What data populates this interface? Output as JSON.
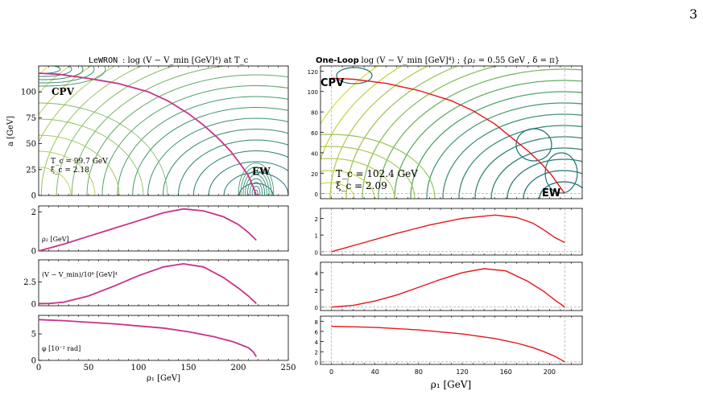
{
  "page_number": "3",
  "left_panel": {
    "title_code": "LeWRON",
    "title_rest": ": log (V − V_min [GeV]⁴) at T_c",
    "y_label": "a [GeV]",
    "x_label": "ρ₁ [GeV]",
    "point_cpv": "CPV",
    "point_ew": "EW",
    "tc_text": "T_c = 99.7 GeV",
    "xi_text": "ξ_c = 2.18"
  },
  "right_panel": {
    "title_code": "One-Loop",
    "title_rest": " :  log (V − V_min [GeV]⁴) ; {ρ₂ = 0.55 GeV ,  δ = π}",
    "x_label": "ρ₁ [GeV]",
    "point_cpv": "CPV",
    "point_ew": "EW",
    "tc_text": "T_c = 102.4 GeV",
    "xi_text": "ξ_c = 2.09"
  },
  "colors": {
    "lewron_path": "#c8338a",
    "oneloop_path": "#e8141b",
    "contour_dark": "#1b6f75",
    "contour_light": "#d9e04a"
  },
  "chart_data": [
    {
      "type": "line",
      "panel": "left-contour",
      "title": "LeWRON: log (V − V_min [GeV]⁴) at T_c",
      "ylabel": "a [GeV]",
      "xlim": [
        0,
        250
      ],
      "ylim": [
        0,
        125
      ],
      "xticks": [
        0,
        50,
        100,
        150,
        200,
        250
      ],
      "yticks": [
        0,
        25,
        50,
        75,
        100
      ],
      "series": [
        {
          "x": [
            0,
            20,
            50,
            80,
            110,
            130,
            150,
            165,
            180,
            192,
            203,
            210,
            215,
            218
          ],
          "y": [
            118,
            117,
            113,
            108,
            100,
            91,
            79,
            68,
            55,
            43,
            29,
            19,
            8,
            0
          ]
        }
      ]
    },
    {
      "type": "line",
      "panel": "left-rho2",
      "ylabel": "ρ₂ [GeV]",
      "xlim": [
        0,
        250
      ],
      "ylim": [
        0,
        2.3
      ],
      "yticks": [
        0,
        2
      ],
      "series": [
        {
          "x": [
            0,
            25,
            50,
            75,
            100,
            125,
            145,
            165,
            185,
            200,
            210,
            215,
            218
          ],
          "y": [
            0,
            0.35,
            0.75,
            1.15,
            1.55,
            1.95,
            2.15,
            2.05,
            1.75,
            1.35,
            0.95,
            0.7,
            0.55
          ]
        }
      ]
    },
    {
      "type": "line",
      "panel": "left-potential",
      "ylabel": "(V − V_min)/10⁶ [GeV]⁴",
      "xlim": [
        0,
        250
      ],
      "ylim": [
        -0.2,
        5.0
      ],
      "yticks": [
        0.0,
        2.5
      ],
      "series": [
        {
          "x": [
            0,
            10,
            25,
            50,
            75,
            100,
            125,
            145,
            165,
            185,
            200,
            210,
            218
          ],
          "y": [
            0.05,
            0.05,
            0.2,
            0.9,
            2.0,
            3.2,
            4.2,
            4.55,
            4.2,
            3.0,
            1.8,
            0.9,
            0.05
          ]
        }
      ]
    },
    {
      "type": "line",
      "panel": "left-phase",
      "xlabel": "ρ₁ [GeV]",
      "ylabel": "φ [10⁻² rad]",
      "xlim": [
        0,
        250
      ],
      "ylim": [
        0,
        8.5
      ],
      "yticks": [
        0,
        5
      ],
      "series": [
        {
          "x": [
            0,
            25,
            50,
            75,
            100,
            125,
            150,
            175,
            195,
            210,
            215,
            218
          ],
          "y": [
            7.7,
            7.5,
            7.2,
            6.9,
            6.5,
            6.1,
            5.4,
            4.5,
            3.5,
            2.4,
            1.6,
            0.7
          ]
        }
      ]
    },
    {
      "type": "line",
      "panel": "right-contour",
      "title": "One-Loop : log (V − V_min [GeV]⁴) ; {ρ₂ = 0.55 GeV , δ = π}",
      "xlim": [
        -10,
        230
      ],
      "ylim": [
        -5,
        125
      ],
      "xticks": [
        0,
        40,
        80,
        120,
        160,
        200
      ],
      "yticks": [
        0,
        20,
        40,
        60,
        80,
        100,
        120
      ],
      "series": [
        {
          "x": [
            0,
            20,
            50,
            80,
            110,
            130,
            150,
            165,
            180,
            192,
            202,
            208,
            214
          ],
          "y": [
            113,
            112,
            108,
            101,
            91,
            81,
            68,
            55,
            42,
            30,
            18,
            9,
            0
          ]
        }
      ]
    },
    {
      "type": "line",
      "panel": "right-rho2",
      "xlim": [
        -10,
        230
      ],
      "ylim": [
        -0.2,
        2.6
      ],
      "yticks": [
        0,
        1,
        2
      ],
      "series": [
        {
          "x": [
            0,
            30,
            60,
            90,
            120,
            150,
            170,
            185,
            195,
            205,
            214
          ],
          "y": [
            0,
            0.55,
            1.1,
            1.6,
            2.0,
            2.2,
            2.05,
            1.7,
            1.3,
            0.85,
            0.55
          ]
        }
      ]
    },
    {
      "type": "line",
      "panel": "right-potential",
      "xlim": [
        -10,
        230
      ],
      "ylim": [
        -0.4,
        5.2
      ],
      "yticks": [
        0,
        2,
        4
      ],
      "series": [
        {
          "x": [
            0,
            20,
            40,
            60,
            80,
            100,
            120,
            140,
            160,
            180,
            195,
            205,
            214
          ],
          "y": [
            0,
            0.2,
            0.7,
            1.4,
            2.3,
            3.2,
            4.0,
            4.45,
            4.2,
            3.0,
            1.8,
            0.8,
            0.02
          ]
        }
      ]
    },
    {
      "type": "line",
      "panel": "right-phase",
      "xlabel": "ρ₁ [GeV]",
      "xlim": [
        -10,
        230
      ],
      "ylim": [
        -0.5,
        9
      ],
      "yticks": [
        0,
        2,
        4,
        6,
        8
      ],
      "series": [
        {
          "x": [
            0,
            40,
            80,
            120,
            150,
            170,
            185,
            195,
            205,
            210,
            214
          ],
          "y": [
            7.0,
            6.8,
            6.3,
            5.5,
            4.6,
            3.7,
            2.8,
            2.0,
            1.1,
            0.5,
            0
          ]
        }
      ]
    }
  ]
}
